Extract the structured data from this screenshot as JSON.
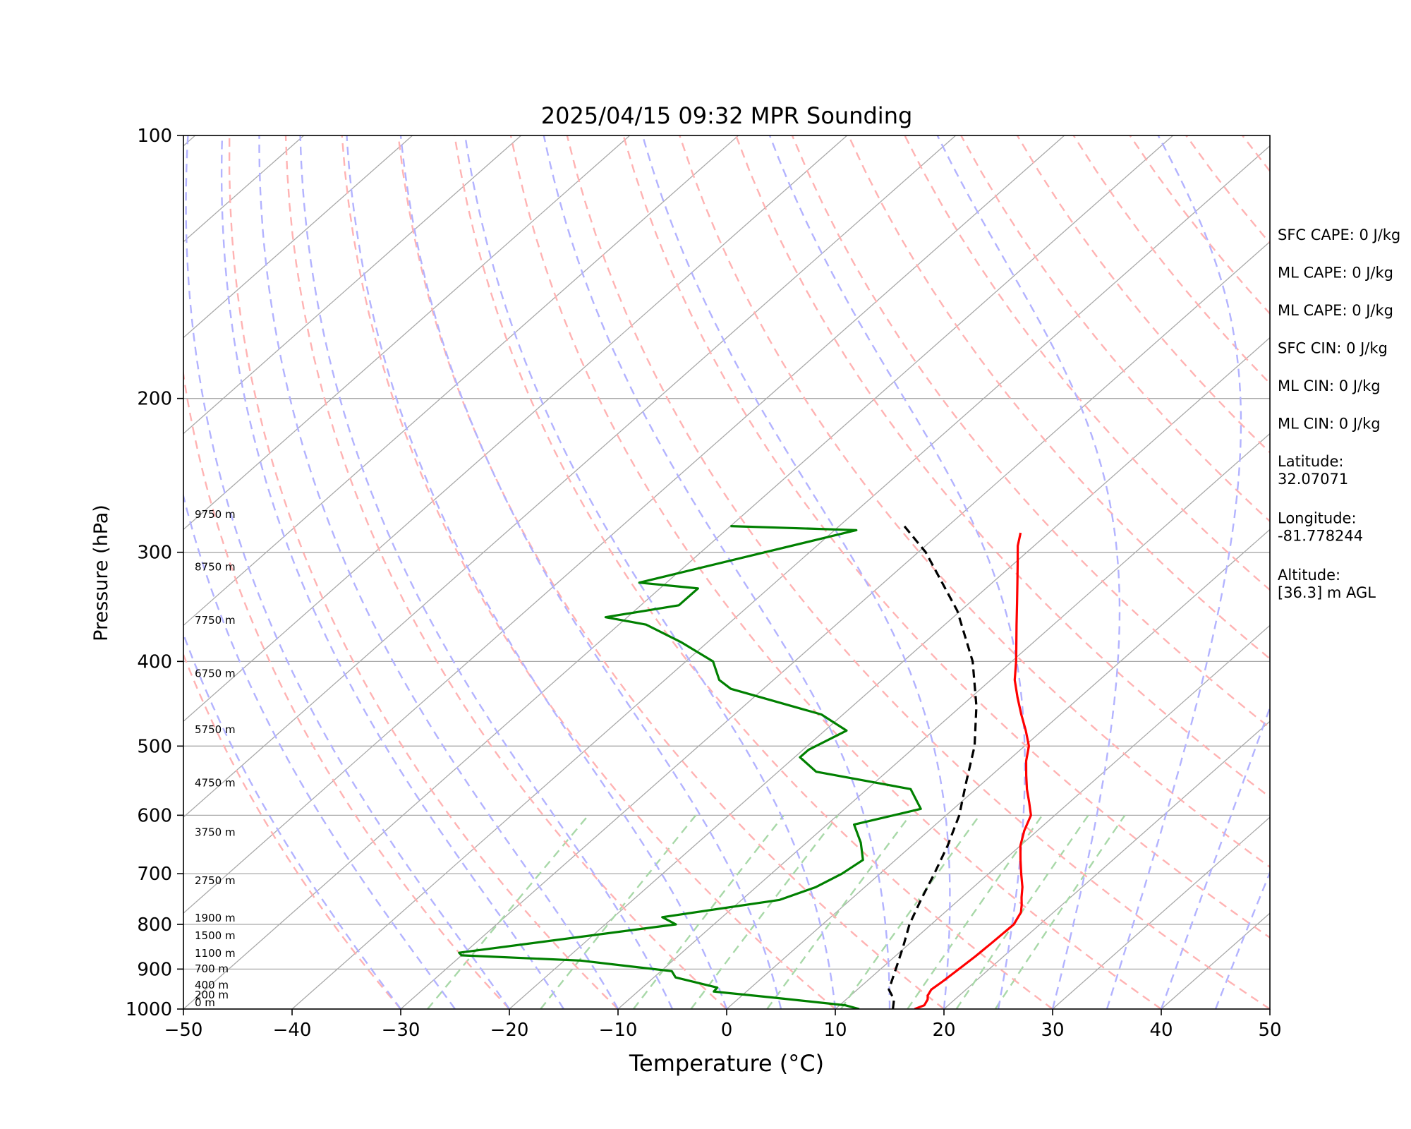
{
  "chart_data": {
    "type": "line",
    "title": "2025/04/15 09:32 MPR Sounding",
    "xlabel": "Temperature (°C)",
    "ylabel": "Pressure (hPa)",
    "xlim": [
      -50,
      50
    ],
    "ylim": [
      1000,
      100
    ],
    "yscale": "log",
    "skew": "skew-T log-p",
    "x_ticks": [
      "−50",
      "−40",
      "−30",
      "−20",
      "−10",
      "0",
      "10",
      "20",
      "30",
      "40",
      "50"
    ],
    "y_ticks": [
      "100",
      "200",
      "300",
      "400",
      "500",
      "600",
      "700",
      "800",
      "900",
      "1000"
    ],
    "grid": true,
    "colors": {
      "temperature": "#ff0000",
      "dewpoint": "#008000",
      "parcel": "#000000",
      "isotherm": "#a9a9a9",
      "dry_adiabat": "#ffb3b3",
      "moist_adiabat": "#b3b3ff",
      "mixing_ratio": "#a8d8a8"
    },
    "series": [
      {
        "key": "temperature",
        "points": [
          [
            17.3,
            1000
          ],
          [
            17.8,
            990
          ],
          [
            17.5,
            975
          ],
          [
            17.1,
            965
          ],
          [
            16.8,
            950
          ],
          [
            17.0,
            930
          ],
          [
            17.2,
            900
          ],
          [
            17.4,
            870
          ],
          [
            17.5,
            840
          ],
          [
            17.6,
            800
          ],
          [
            17.0,
            775
          ],
          [
            16.3,
            760
          ],
          [
            15.5,
            745
          ],
          [
            14.5,
            725
          ],
          [
            13.0,
            700
          ],
          [
            11.5,
            675
          ],
          [
            10.0,
            650
          ],
          [
            8.8,
            625
          ],
          [
            7.8,
            600
          ],
          [
            6.3,
            580
          ],
          [
            4.7,
            560
          ],
          [
            3.2,
            540
          ],
          [
            1.7,
            520
          ],
          [
            0.4,
            500
          ],
          [
            -1.5,
            480
          ],
          [
            -3.6,
            460
          ],
          [
            -5.7,
            440
          ],
          [
            -7.8,
            420
          ],
          [
            -9.6,
            400
          ],
          [
            -11.3,
            383
          ],
          [
            -13.4,
            363
          ],
          [
            -15.6,
            343
          ],
          [
            -17.7,
            325
          ],
          [
            -19.8,
            308
          ],
          [
            -21.5,
            295
          ],
          [
            -22.6,
            285
          ]
        ],
        "label": ""
      },
      {
        "key": "dewpoint",
        "points": [
          [
            12.2,
            1000
          ],
          [
            10.5,
            990
          ],
          [
            3.0,
            970
          ],
          [
            -3.0,
            955
          ],
          [
            -3.1,
            945
          ],
          [
            -8.0,
            920
          ],
          [
            -9.0,
            905
          ],
          [
            -18.5,
            880
          ],
          [
            -30.0,
            868
          ],
          [
            -30.5,
            862
          ],
          [
            -13.5,
            800
          ],
          [
            -15.5,
            785
          ],
          [
            -6.5,
            750
          ],
          [
            -4.5,
            725
          ],
          [
            -3.5,
            700
          ],
          [
            -3.0,
            675
          ],
          [
            -5.0,
            645
          ],
          [
            -7.5,
            615
          ],
          [
            -3.0,
            590
          ],
          [
            -6.0,
            560
          ],
          [
            -16.5,
            535
          ],
          [
            -19.5,
            515
          ],
          [
            -19.5,
            505
          ],
          [
            -18.0,
            480
          ],
          [
            -22.0,
            460
          ],
          [
            -33.0,
            430
          ],
          [
            -35.0,
            420
          ],
          [
            -37.5,
            400
          ],
          [
            -42.5,
            380
          ],
          [
            -47.5,
            363
          ],
          [
            -52.0,
            356
          ],
          [
            -46.5,
            345
          ],
          [
            -46.5,
            330
          ],
          [
            -52.5,
            325
          ],
          [
            -38.0,
            283
          ],
          [
            -50.0,
            280
          ]
        ],
        "label": ""
      },
      {
        "key": "parcel",
        "points": [
          [
            15.3,
            1000
          ],
          [
            14.4,
            975
          ],
          [
            12.9,
            950
          ],
          [
            11.4,
            900
          ],
          [
            9.8,
            850
          ],
          [
            8.0,
            800
          ],
          [
            6.5,
            750
          ],
          [
            5.0,
            700
          ],
          [
            3.3,
            650
          ],
          [
            1.2,
            600
          ],
          [
            -1.6,
            550
          ],
          [
            -4.6,
            500
          ],
          [
            -8.6,
            450
          ],
          [
            -13.6,
            400
          ],
          [
            -20.3,
            350
          ],
          [
            -29.3,
            300
          ],
          [
            -34.0,
            280
          ]
        ],
        "label": ""
      }
    ],
    "height_labels": [
      {
        "p": 1000,
        "text": "0 m"
      },
      {
        "p": 980,
        "text": "200 m"
      },
      {
        "p": 955,
        "text": "400 m"
      },
      {
        "p": 915,
        "text": "700 m"
      },
      {
        "p": 878,
        "text": "1100 m"
      },
      {
        "p": 838,
        "text": "1500 m"
      },
      {
        "p": 800,
        "text": "1900 m"
      },
      {
        "p": 725,
        "text": "2750 m"
      },
      {
        "p": 638,
        "text": "3750 m"
      },
      {
        "p": 560,
        "text": "4750 m"
      },
      {
        "p": 487,
        "text": "5750 m"
      },
      {
        "p": 420,
        "text": "6750 m"
      },
      {
        "p": 365,
        "text": "7750 m"
      },
      {
        "p": 317,
        "text": "8750 m"
      },
      {
        "p": 276,
        "text": "9750 m"
      }
    ],
    "annotations": [
      {
        "key": "sfc_cape",
        "text": "SFC CAPE: 0 J/kg"
      },
      {
        "key": "ml_cape_1",
        "text": "ML CAPE: 0 J/kg"
      },
      {
        "key": "ml_cape_2",
        "text": "ML CAPE: 0 J/kg"
      },
      {
        "key": "sfc_cin",
        "text": "SFC CIN: 0 J/kg"
      },
      {
        "key": "ml_cin_1",
        "text": "ML CIN: 0 J/kg"
      },
      {
        "key": "ml_cin_2",
        "text": "ML CIN: 0 J/kg"
      },
      {
        "key": "latitude",
        "text": [
          "Latitude:",
          "32.07071"
        ]
      },
      {
        "key": "longitude",
        "text": [
          "Longitude:",
          "-81.778244"
        ]
      },
      {
        "key": "altitude",
        "text": [
          "Altitude:",
          "[36.3] m AGL"
        ]
      }
    ]
  }
}
